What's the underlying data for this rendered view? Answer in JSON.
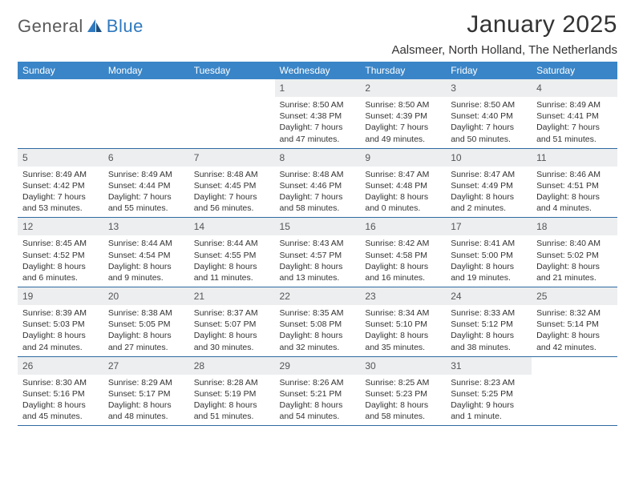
{
  "brand": {
    "text1": "General",
    "text2": "Blue"
  },
  "title": "January 2025",
  "location": "Aalsmeer, North Holland, The Netherlands",
  "colors": {
    "header_bg": "#3a85c7",
    "header_text": "#ffffff",
    "daynum_bg": "#eceef0",
    "daynum_text": "#555555",
    "body_text": "#333333",
    "divider": "#2f6aa0",
    "logo_gray": "#5a5a5a",
    "logo_blue": "#2f79bf",
    "page_bg": "#ffffff"
  },
  "typography": {
    "title_fontsize": 30,
    "location_fontsize": 15,
    "weekday_fontsize": 12,
    "daynum_fontsize": 12,
    "cell_fontsize": 10.5
  },
  "weekdays": [
    "Sunday",
    "Monday",
    "Tuesday",
    "Wednesday",
    "Thursday",
    "Friday",
    "Saturday"
  ],
  "grid": {
    "columns": 7,
    "rows": 5,
    "start_weekday_index": 3,
    "days_in_month": 31
  },
  "days": {
    "1": {
      "sunrise": "8:50 AM",
      "sunset": "4:38 PM",
      "daylight": "7 hours and 47 minutes."
    },
    "2": {
      "sunrise": "8:50 AM",
      "sunset": "4:39 PM",
      "daylight": "7 hours and 49 minutes."
    },
    "3": {
      "sunrise": "8:50 AM",
      "sunset": "4:40 PM",
      "daylight": "7 hours and 50 minutes."
    },
    "4": {
      "sunrise": "8:49 AM",
      "sunset": "4:41 PM",
      "daylight": "7 hours and 51 minutes."
    },
    "5": {
      "sunrise": "8:49 AM",
      "sunset": "4:42 PM",
      "daylight": "7 hours and 53 minutes."
    },
    "6": {
      "sunrise": "8:49 AM",
      "sunset": "4:44 PM",
      "daylight": "7 hours and 55 minutes."
    },
    "7": {
      "sunrise": "8:48 AM",
      "sunset": "4:45 PM",
      "daylight": "7 hours and 56 minutes."
    },
    "8": {
      "sunrise": "8:48 AM",
      "sunset": "4:46 PM",
      "daylight": "7 hours and 58 minutes."
    },
    "9": {
      "sunrise": "8:47 AM",
      "sunset": "4:48 PM",
      "daylight": "8 hours and 0 minutes."
    },
    "10": {
      "sunrise": "8:47 AM",
      "sunset": "4:49 PM",
      "daylight": "8 hours and 2 minutes."
    },
    "11": {
      "sunrise": "8:46 AM",
      "sunset": "4:51 PM",
      "daylight": "8 hours and 4 minutes."
    },
    "12": {
      "sunrise": "8:45 AM",
      "sunset": "4:52 PM",
      "daylight": "8 hours and 6 minutes."
    },
    "13": {
      "sunrise": "8:44 AM",
      "sunset": "4:54 PM",
      "daylight": "8 hours and 9 minutes."
    },
    "14": {
      "sunrise": "8:44 AM",
      "sunset": "4:55 PM",
      "daylight": "8 hours and 11 minutes."
    },
    "15": {
      "sunrise": "8:43 AM",
      "sunset": "4:57 PM",
      "daylight": "8 hours and 13 minutes."
    },
    "16": {
      "sunrise": "8:42 AM",
      "sunset": "4:58 PM",
      "daylight": "8 hours and 16 minutes."
    },
    "17": {
      "sunrise": "8:41 AM",
      "sunset": "5:00 PM",
      "daylight": "8 hours and 19 minutes."
    },
    "18": {
      "sunrise": "8:40 AM",
      "sunset": "5:02 PM",
      "daylight": "8 hours and 21 minutes."
    },
    "19": {
      "sunrise": "8:39 AM",
      "sunset": "5:03 PM",
      "daylight": "8 hours and 24 minutes."
    },
    "20": {
      "sunrise": "8:38 AM",
      "sunset": "5:05 PM",
      "daylight": "8 hours and 27 minutes."
    },
    "21": {
      "sunrise": "8:37 AM",
      "sunset": "5:07 PM",
      "daylight": "8 hours and 30 minutes."
    },
    "22": {
      "sunrise": "8:35 AM",
      "sunset": "5:08 PM",
      "daylight": "8 hours and 32 minutes."
    },
    "23": {
      "sunrise": "8:34 AM",
      "sunset": "5:10 PM",
      "daylight": "8 hours and 35 minutes."
    },
    "24": {
      "sunrise": "8:33 AM",
      "sunset": "5:12 PM",
      "daylight": "8 hours and 38 minutes."
    },
    "25": {
      "sunrise": "8:32 AM",
      "sunset": "5:14 PM",
      "daylight": "8 hours and 42 minutes."
    },
    "26": {
      "sunrise": "8:30 AM",
      "sunset": "5:16 PM",
      "daylight": "8 hours and 45 minutes."
    },
    "27": {
      "sunrise": "8:29 AM",
      "sunset": "5:17 PM",
      "daylight": "8 hours and 48 minutes."
    },
    "28": {
      "sunrise": "8:28 AM",
      "sunset": "5:19 PM",
      "daylight": "8 hours and 51 minutes."
    },
    "29": {
      "sunrise": "8:26 AM",
      "sunset": "5:21 PM",
      "daylight": "8 hours and 54 minutes."
    },
    "30": {
      "sunrise": "8:25 AM",
      "sunset": "5:23 PM",
      "daylight": "8 hours and 58 minutes."
    },
    "31": {
      "sunrise": "8:23 AM",
      "sunset": "5:25 PM",
      "daylight": "9 hours and 1 minute."
    }
  },
  "labels": {
    "sunrise": "Sunrise:",
    "sunset": "Sunset:",
    "daylight": "Daylight:"
  }
}
